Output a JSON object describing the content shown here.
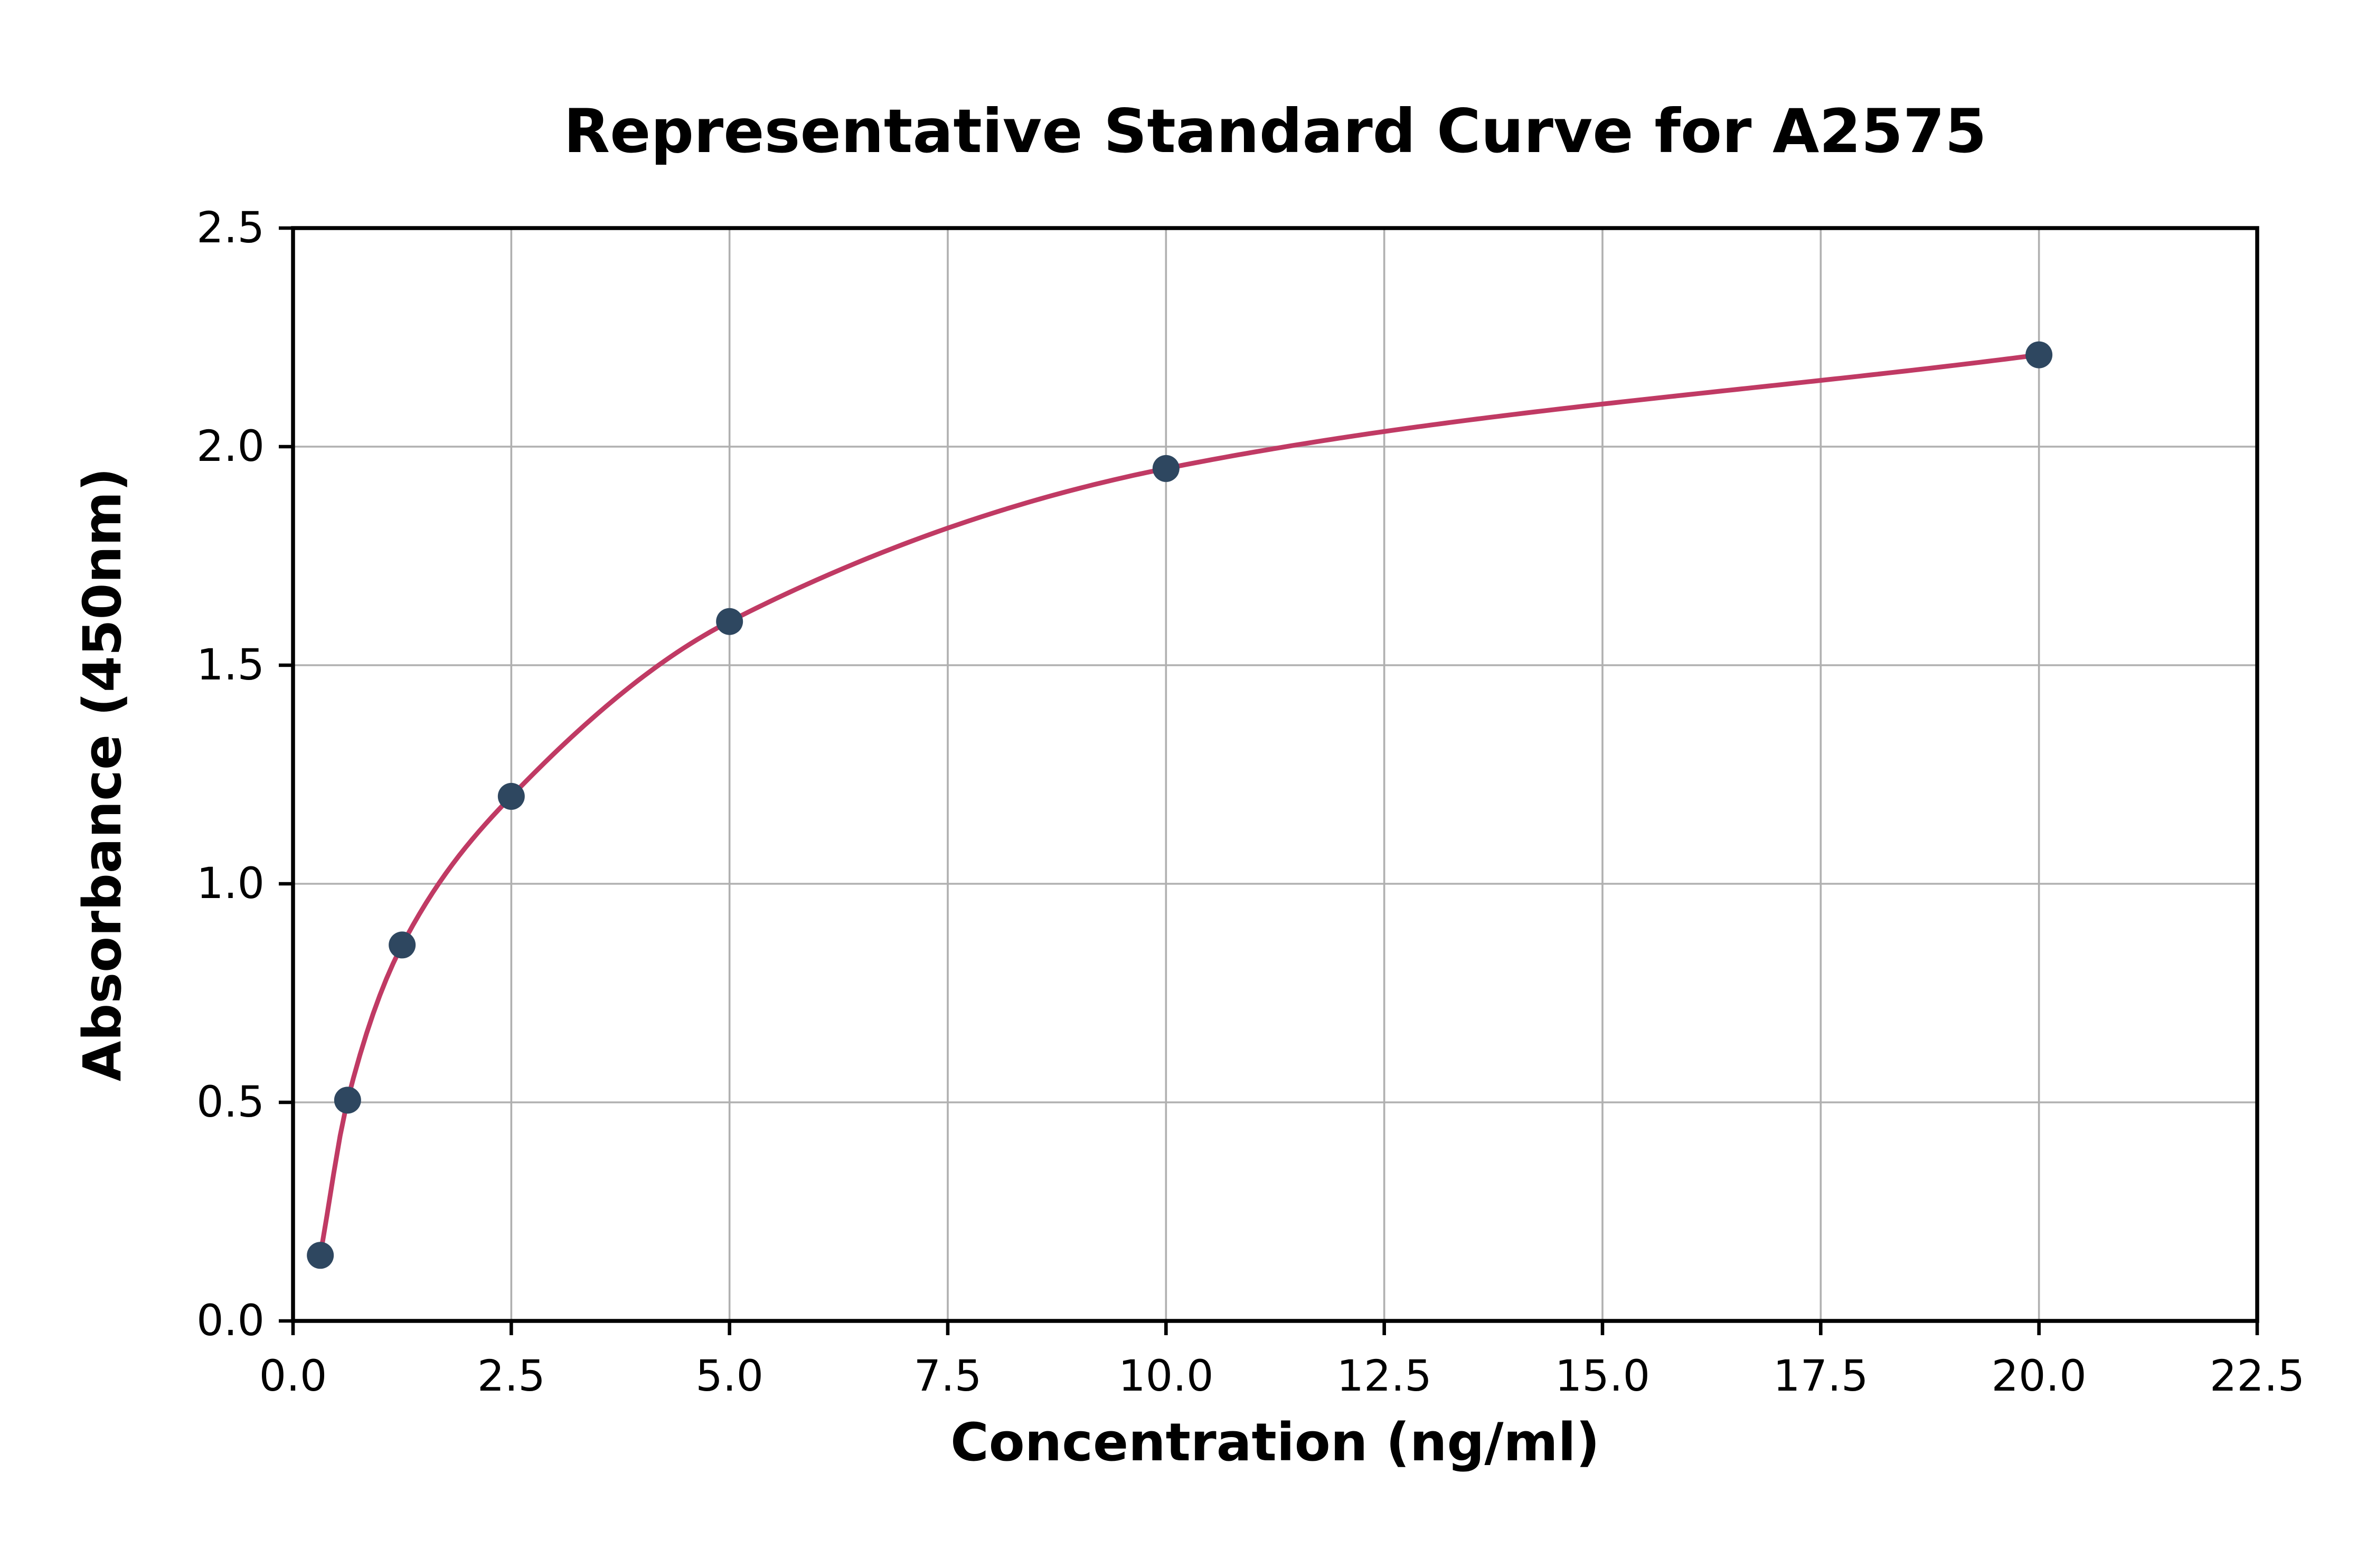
{
  "chart_data": {
    "type": "scatter",
    "title": "Representative Standard Curve for A2575",
    "xlabel": "Concentration (ng/ml)",
    "ylabel": "Absorbance (450nm)",
    "xlim": [
      0,
      22.5
    ],
    "ylim": [
      0,
      2.5
    ],
    "x_ticks": [
      0.0,
      2.5,
      5.0,
      7.5,
      10.0,
      12.5,
      15.0,
      17.5,
      20.0,
      22.5
    ],
    "x_tick_labels": [
      "0.0",
      "2.5",
      "5.0",
      "7.5",
      "10.0",
      "12.5",
      "15.0",
      "17.5",
      "20.0",
      "22.5"
    ],
    "y_ticks": [
      0.0,
      0.5,
      1.0,
      1.5,
      2.0,
      2.5
    ],
    "y_tick_labels": [
      "0.0",
      "0.5",
      "1.0",
      "1.5",
      "2.0",
      "2.5"
    ],
    "grid": true,
    "legend": "none",
    "series": [
      {
        "name": "standard-curve",
        "points_x": [
          0.3125,
          0.625,
          1.25,
          2.5,
          5.0,
          10.0,
          20.0
        ],
        "points_y": [
          0.15,
          0.505,
          0.86,
          1.2,
          1.6,
          1.95,
          2.21
        ]
      }
    ],
    "curve_color": "#c03a64",
    "point_color": "#2e4760",
    "grid_color": "#b0b0b0",
    "axis_color": "#000000",
    "background": "#ffffff"
  }
}
